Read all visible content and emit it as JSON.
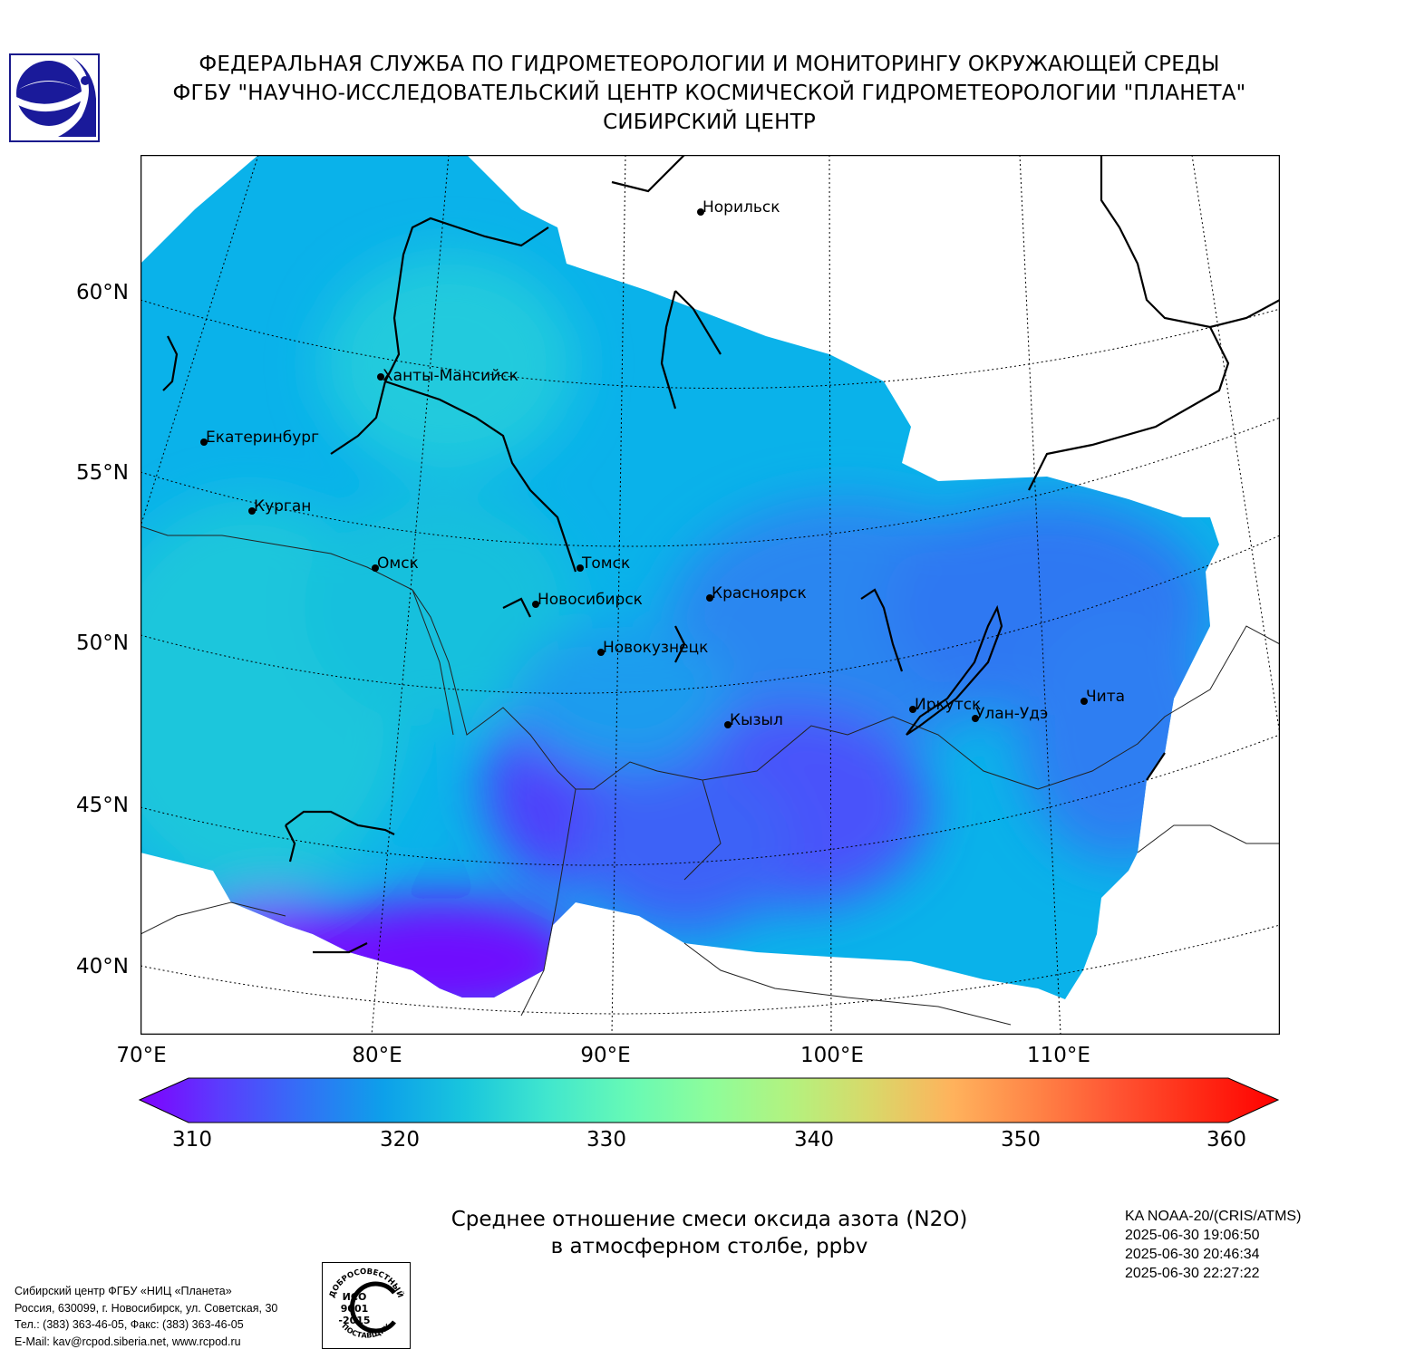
{
  "header": {
    "line1": "ФЕДЕРАЛЬНАЯ СЛУЖБА ПО ГИДРОМЕТЕОРОЛОГИИ И МОНИТОРИНГУ ОКРУЖАЮЩЕЙ СРЕДЫ",
    "line2": "ФГБУ \"НАУЧНО-ИССЛЕДОВАТЕЛЬСКИЙ ЦЕНТР КОСМИЧЕСКОЙ ГИДРОМЕТЕОРОЛОГИИ \"ПЛАНЕТА\"",
    "line3": "СИБИРСКИЙ ЦЕНТР"
  },
  "map": {
    "latitude_labels": [
      "60°N",
      "55°N",
      "50°N",
      "45°N",
      "40°N"
    ],
    "longitude_labels": [
      "70°E",
      "80°E",
      "90°E",
      "100°E",
      "110°E"
    ],
    "cities": [
      "Норильск",
      "Ханты-Мансийск",
      "Екатеринбург",
      "Курган",
      "Омск",
      "Томск",
      "Новосибирск",
      "Красноярск",
      "Новокузнецк",
      "Кызыл",
      "Иркутск",
      "Улан-Удэ",
      "Чита"
    ]
  },
  "colorbar": {
    "ticks": [
      "310",
      "320",
      "330",
      "340",
      "350",
      "360"
    ],
    "colors": [
      "#8000ff",
      "#5a3dfd",
      "#3370f6",
      "#0da0ea",
      "#19c6dd",
      "#40e6ce",
      "#66f9b6",
      "#8dfd9b",
      "#b3f27f",
      "#d9d869",
      "#ffb25c",
      "#ff8547",
      "#ff5533",
      "#ff2b16",
      "#ff0000"
    ]
  },
  "product": {
    "title_line1": "Среднее отношение смеси оксида азота (N2O)",
    "title_line2": "в атмосферном столбе, ppbv"
  },
  "satellite": {
    "name": "KA NOAA-20/(CRIS/ATMS)",
    "time1": "2025-06-30 19:06:50",
    "time2": "2025-06-30 20:46:34",
    "time3": "2025-06-30 22:27:22"
  },
  "footer": {
    "line1": "Сибирский центр ФГБУ «НИЦ «Планета»",
    "line2": "Россия, 630099, г. Новосибирск, ул. Советская, 30",
    "line3": "Тел.: (383) 363-46-05, Факс: (383) 363-46-05",
    "line4": "E-Mail: kav@rcpod.siberia.net, www.rcpod.ru"
  },
  "iso_badge": {
    "top_text": "ДОБРОСОВЕСТНЫЙ",
    "line1": "ИСО",
    "line2": "9001",
    "line3": "-2015",
    "bottom_text": "ПОСТАВЩИК"
  }
}
